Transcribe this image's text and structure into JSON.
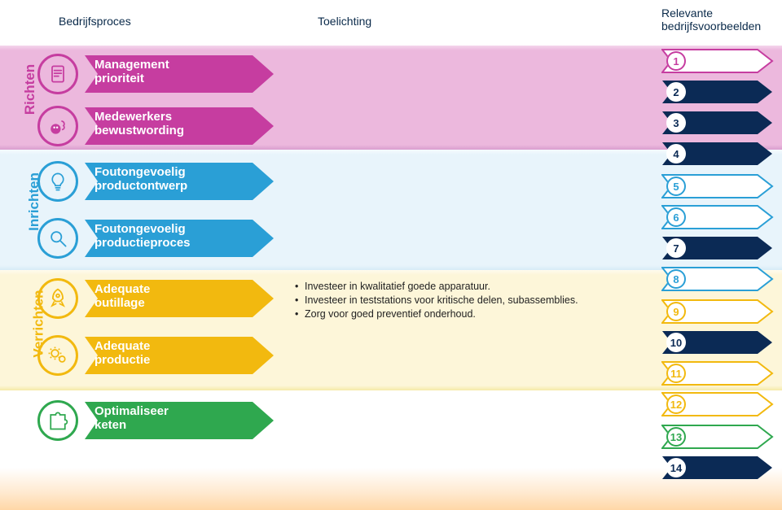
{
  "header": {
    "col1": "Bedrijfsproces",
    "col2": "Toelichting",
    "col3_line1": "Relevante",
    "col3_line2": "bedrijfsvoorbeelden"
  },
  "phases": {
    "richten": {
      "label": "Richten",
      "color": "#c63da0",
      "band": "#ecb8dd"
    },
    "inrichten": {
      "label": "Inrichten",
      "color": "#2a9fd6",
      "band": "#e8f4fb"
    },
    "verrichten": {
      "label": "Verrichten",
      "color": "#f2b90f",
      "band": "#fdf6d9"
    },
    "keten": {
      "color": "#2fa84f"
    }
  },
  "processes": [
    {
      "phase": "richten",
      "icon": "document",
      "line1": "Management",
      "line2": "prioriteit"
    },
    {
      "phase": "richten",
      "icon": "think",
      "line1": "Medewerkers",
      "line2": "bewustwording"
    },
    {
      "phase": "inrichten",
      "icon": "bulb",
      "line1": "Foutongevoelig",
      "line2": "productontwerp"
    },
    {
      "phase": "inrichten",
      "icon": "magnify",
      "line1": "Foutongevoelig",
      "line2": "productieproces"
    },
    {
      "phase": "verrichten",
      "icon": "rocket",
      "line1": "Adequate",
      "line2": "outillage"
    },
    {
      "phase": "verrichten",
      "icon": "gears",
      "line1": "Adequate",
      "line2": "productie"
    },
    {
      "phase": "keten",
      "icon": "puzzle",
      "line1": "Optimaliseer",
      "line2": "keten"
    }
  ],
  "bullets_for_outillage": [
    "Investeer in kwalitatief goede apparatuur.",
    "Investeer in teststations voor kritische delen, subassemblies.",
    "Zorg voor goed preventief onderhoud."
  ],
  "examples": [
    {
      "n": 1,
      "filled": false,
      "color": "#c63da0"
    },
    {
      "n": 2,
      "filled": true,
      "color": "#0b2a55"
    },
    {
      "n": 3,
      "filled": true,
      "color": "#0b2a55"
    },
    {
      "n": 4,
      "filled": true,
      "color": "#0b2a55"
    },
    {
      "n": 5,
      "filled": false,
      "color": "#2a9fd6"
    },
    {
      "n": 6,
      "filled": false,
      "color": "#2a9fd6"
    },
    {
      "n": 7,
      "filled": true,
      "color": "#0b2a55"
    },
    {
      "n": 8,
      "filled": false,
      "color": "#2a9fd6"
    },
    {
      "n": 9,
      "filled": false,
      "color": "#f2b90f"
    },
    {
      "n": 10,
      "filled": true,
      "color": "#0b2a55"
    },
    {
      "n": 11,
      "filled": false,
      "color": "#f2b90f"
    },
    {
      "n": 12,
      "filled": false,
      "color": "#f2b90f"
    },
    {
      "n": 13,
      "filled": false,
      "color": "#2fa84f"
    },
    {
      "n": 14,
      "filled": true,
      "color": "#0b2a55"
    }
  ],
  "layout": {
    "proc_tops": [
      64,
      128,
      196,
      266,
      340,
      410,
      490
    ],
    "ex_tops": [
      60,
      98,
      136,
      174,
      214,
      252,
      290,
      328,
      368,
      406,
      444,
      482,
      522,
      560
    ],
    "arrow_tail_color_overrides": {}
  }
}
